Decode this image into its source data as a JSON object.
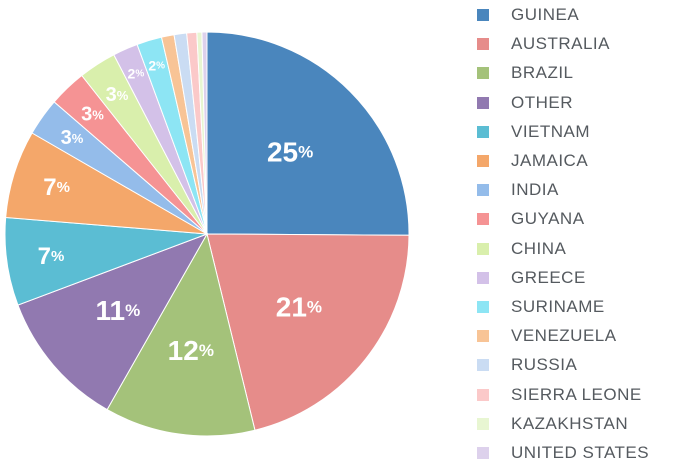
{
  "chart_data": {
    "type": "pie",
    "title": "",
    "legend_position": "right",
    "start_angle_deg": 0,
    "direction": "clockwise",
    "slices": [
      {
        "name": "GUINEA",
        "value": 25,
        "label": "25",
        "color": "#4a86bd"
      },
      {
        "name": "AUSTRALIA",
        "value": 21,
        "label": "21",
        "color": "#e68c8a"
      },
      {
        "name": "BRAZIL",
        "value": 12,
        "label": "12",
        "color": "#a4c27a"
      },
      {
        "name": "OTHER",
        "value": 11,
        "label": "11",
        "color": "#9179b0"
      },
      {
        "name": "VIETNAM",
        "value": 7,
        "label": "7",
        "color": "#5bbdd3"
      },
      {
        "name": "JAMAICA",
        "value": 7,
        "label": "7",
        "color": "#f4a76a"
      },
      {
        "name": "INDIA",
        "value": 3,
        "label": "3",
        "color": "#94bcea"
      },
      {
        "name": "GUYANA",
        "value": 3,
        "label": "3",
        "color": "#f59394"
      },
      {
        "name": "CHINA",
        "value": 3,
        "label": "3",
        "color": "#d9efac"
      },
      {
        "name": "GREECE",
        "value": 2,
        "label": "2",
        "color": "#d3c1e8"
      },
      {
        "name": "SURINAME",
        "value": 2,
        "label": "2",
        "color": "#8de5f4"
      },
      {
        "name": "VENEZUELA",
        "value": 1,
        "label": "",
        "color": "#f8c496"
      },
      {
        "name": "RUSSIA",
        "value": 1,
        "label": "",
        "color": "#cadcf3"
      },
      {
        "name": "SIERRA LEONE",
        "value": 0.8,
        "label": "",
        "color": "#fbc9c9"
      },
      {
        "name": "KAZAKHSTAN",
        "value": 0.4,
        "label": "",
        "color": "#e8f6d2"
      },
      {
        "name": "UNITED STATES",
        "value": 0.4,
        "label": "",
        "color": "#ddd1ec"
      }
    ],
    "percent_suffix": "%"
  }
}
